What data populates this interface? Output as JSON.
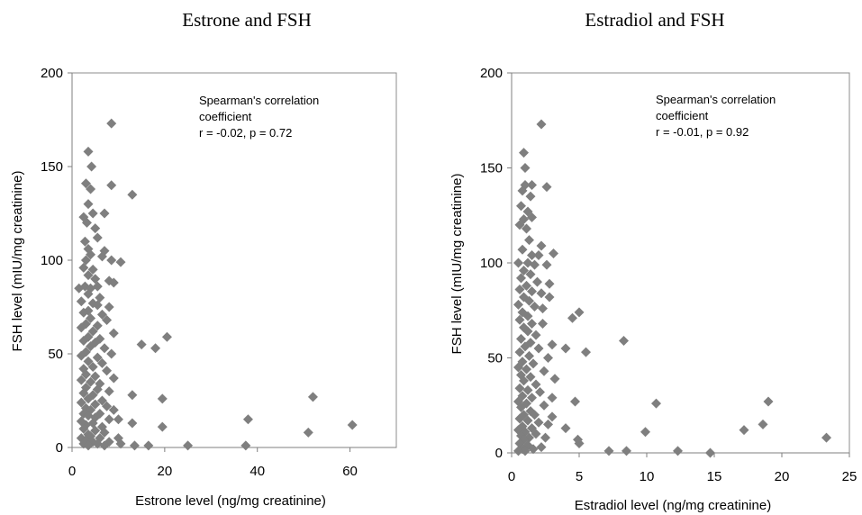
{
  "chart_data": [
    {
      "type": "scatter",
      "title": "Estrone and FSH",
      "xlabel": "Estrone level (ng/mg creatinine)",
      "ylabel": "FSH level (mIU/mg creatinine)",
      "xlim": [
        0,
        70
      ],
      "ylim": [
        0,
        200
      ],
      "xticks": [
        0,
        20,
        40,
        60
      ],
      "yticks": [
        0,
        50,
        100,
        150,
        200
      ],
      "grid": false,
      "marker_color": "#7f7f7f",
      "annotation": [
        "Spearman's correlation",
        "coefficient",
        "r = -0.02, p = 0.72"
      ],
      "points": [
        [
          8.5,
          173
        ],
        [
          3.5,
          158
        ],
        [
          8.5,
          140
        ],
        [
          13,
          135
        ],
        [
          3,
          141
        ],
        [
          4,
          138
        ],
        [
          4.2,
          150
        ],
        [
          3.5,
          130
        ],
        [
          2.5,
          123
        ],
        [
          4.5,
          125
        ],
        [
          7,
          125
        ],
        [
          3.2,
          120
        ],
        [
          5,
          117
        ],
        [
          2.8,
          110
        ],
        [
          5.5,
          112
        ],
        [
          3.5,
          106
        ],
        [
          7,
          105
        ],
        [
          4,
          103
        ],
        [
          3,
          100
        ],
        [
          6.5,
          102
        ],
        [
          8.5,
          100
        ],
        [
          10.5,
          99
        ],
        [
          2.5,
          96
        ],
        [
          4.5,
          95
        ],
        [
          3.5,
          92
        ],
        [
          5,
          90
        ],
        [
          8,
          89
        ],
        [
          9,
          88
        ],
        [
          2.8,
          86
        ],
        [
          4,
          85
        ],
        [
          5.5,
          86
        ],
        [
          1.5,
          85
        ],
        [
          3.5,
          82
        ],
        [
          6,
          80
        ],
        [
          2,
          78
        ],
        [
          4.5,
          77
        ],
        [
          5.5,
          76
        ],
        [
          8,
          75
        ],
        [
          3.5,
          73
        ],
        [
          2.5,
          72
        ],
        [
          6.5,
          71
        ],
        [
          4,
          69
        ],
        [
          7.5,
          68
        ],
        [
          3,
          66
        ],
        [
          5.5,
          65
        ],
        [
          2,
          64
        ],
        [
          4.5,
          62
        ],
        [
          9,
          61
        ],
        [
          3.5,
          59
        ],
        [
          6,
          58
        ],
        [
          2.5,
          57
        ],
        [
          5,
          56
        ],
        [
          15,
          55
        ],
        [
          18,
          53
        ],
        [
          20.5,
          59
        ],
        [
          4,
          54
        ],
        [
          7,
          53
        ],
        [
          3,
          51
        ],
        [
          8.5,
          50
        ],
        [
          2,
          49
        ],
        [
          5.5,
          48
        ],
        [
          3.5,
          46
        ],
        [
          6.5,
          45
        ],
        [
          4.5,
          43
        ],
        [
          2.5,
          42
        ],
        [
          7.5,
          41
        ],
        [
          3,
          39
        ],
        [
          5,
          38
        ],
        [
          9,
          37
        ],
        [
          2,
          36
        ],
        [
          4,
          35
        ],
        [
          6,
          34
        ],
        [
          3,
          32
        ],
        [
          5.5,
          31
        ],
        [
          8,
          30
        ],
        [
          2.5,
          29
        ],
        [
          4.5,
          28
        ],
        [
          13,
          28
        ],
        [
          19.5,
          26
        ],
        [
          3.5,
          26
        ],
        [
          6.5,
          25
        ],
        [
          2,
          24
        ],
        [
          5,
          23
        ],
        [
          7.5,
          22
        ],
        [
          3,
          21
        ],
        [
          4,
          20
        ],
        [
          9,
          20
        ],
        [
          2.5,
          18
        ],
        [
          6,
          18
        ],
        [
          3.5,
          17
        ],
        [
          5,
          16
        ],
        [
          8,
          15
        ],
        [
          10,
          15
        ],
        [
          2,
          14
        ],
        [
          4.5,
          13
        ],
        [
          13,
          13
        ],
        [
          3,
          12
        ],
        [
          6.5,
          11
        ],
        [
          19.5,
          11
        ],
        [
          2.5,
          10
        ],
        [
          5,
          9
        ],
        [
          7,
          8
        ],
        [
          3.5,
          7
        ],
        [
          4,
          6
        ],
        [
          2,
          5
        ],
        [
          6,
          5
        ],
        [
          10,
          5
        ],
        [
          3,
          4
        ],
        [
          4.5,
          3
        ],
        [
          8,
          3
        ],
        [
          2.5,
          2
        ],
        [
          5.5,
          2
        ],
        [
          13.5,
          1
        ],
        [
          16.5,
          1
        ],
        [
          25,
          1
        ],
        [
          37.5,
          1
        ],
        [
          10.5,
          2
        ],
        [
          3.5,
          1
        ],
        [
          7,
          1
        ],
        [
          52,
          27
        ],
        [
          38,
          15
        ],
        [
          60.5,
          12
        ],
        [
          51,
          8
        ]
      ]
    },
    {
      "type": "scatter",
      "title": "Estradiol and FSH",
      "xlabel": "Estradiol level (ng/mg creatinine)",
      "ylabel": "FSH level (mIU/mg creatinine)",
      "xlim": [
        0,
        25
      ],
      "ylim": [
        0,
        200
      ],
      "xticks": [
        0,
        5,
        10,
        15,
        20,
        25
      ],
      "yticks": [
        0,
        50,
        100,
        150,
        200
      ],
      "grid": false,
      "marker_color": "#7f7f7f",
      "annotation": [
        "Spearman's correlation",
        "coefficient",
        "r = -0.01, p = 0.92"
      ],
      "points": [
        [
          2.2,
          173
        ],
        [
          0.9,
          158
        ],
        [
          1,
          150
        ],
        [
          1.5,
          141
        ],
        [
          2.6,
          140
        ],
        [
          1,
          141
        ],
        [
          0.8,
          138
        ],
        [
          1.4,
          135
        ],
        [
          0.7,
          130
        ],
        [
          1.2,
          127
        ],
        [
          0.9,
          123
        ],
        [
          1.5,
          124
        ],
        [
          0.6,
          120
        ],
        [
          1.1,
          118
        ],
        [
          2.2,
          109
        ],
        [
          1.3,
          112
        ],
        [
          0.8,
          107
        ],
        [
          1.5,
          104
        ],
        [
          2,
          104
        ],
        [
          3.1,
          105
        ],
        [
          0.5,
          100
        ],
        [
          1.2,
          100
        ],
        [
          1.7,
          99
        ],
        [
          2.6,
          99
        ],
        [
          0.9,
          96
        ],
        [
          1.4,
          94
        ],
        [
          0.7,
          92
        ],
        [
          1.9,
          90
        ],
        [
          2.8,
          89
        ],
        [
          1.1,
          88
        ],
        [
          0.6,
          86
        ],
        [
          1.5,
          85
        ],
        [
          2.2,
          84
        ],
        [
          0.9,
          82
        ],
        [
          1.3,
          80
        ],
        [
          2.8,
          82
        ],
        [
          0.5,
          78
        ],
        [
          1.7,
          77
        ],
        [
          2.3,
          76
        ],
        [
          0.8,
          74
        ],
        [
          5,
          74
        ],
        [
          1.2,
          72
        ],
        [
          4.5,
          71
        ],
        [
          0.6,
          70
        ],
        [
          1.5,
          68
        ],
        [
          2.3,
          68
        ],
        [
          0.9,
          66
        ],
        [
          1.2,
          64
        ],
        [
          1.8,
          62
        ],
        [
          0.7,
          60
        ],
        [
          1.4,
          58
        ],
        [
          8.3,
          59
        ],
        [
          1,
          56
        ],
        [
          2,
          55
        ],
        [
          3,
          57
        ],
        [
          4,
          55
        ],
        [
          5.5,
          53
        ],
        [
          0.6,
          53
        ],
        [
          1.3,
          51
        ],
        [
          2.7,
          50
        ],
        [
          0.8,
          48
        ],
        [
          1.6,
          47
        ],
        [
          0.5,
          45
        ],
        [
          1.1,
          44
        ],
        [
          2.4,
          43
        ],
        [
          0.7,
          41
        ],
        [
          1.4,
          40
        ],
        [
          3.2,
          39
        ],
        [
          0.9,
          38
        ],
        [
          1.8,
          36
        ],
        [
          0.6,
          34
        ],
        [
          1.2,
          33
        ],
        [
          2.1,
          32
        ],
        [
          0.8,
          30
        ],
        [
          1.5,
          29
        ],
        [
          3,
          29
        ],
        [
          4.7,
          27
        ],
        [
          0.5,
          27
        ],
        [
          1.1,
          26
        ],
        [
          2.4,
          25
        ],
        [
          0.7,
          24
        ],
        [
          1.4,
          22
        ],
        [
          0.9,
          20
        ],
        [
          1.7,
          20
        ],
        [
          3,
          19
        ],
        [
          0.6,
          18
        ],
        [
          1.2,
          17
        ],
        [
          2,
          16
        ],
        [
          2.7,
          15
        ],
        [
          0.8,
          14
        ],
        [
          1.5,
          13
        ],
        [
          4,
          13
        ],
        [
          0.5,
          12
        ],
        [
          1,
          11
        ],
        [
          1.8,
          10
        ],
        [
          0.7,
          9
        ],
        [
          1.3,
          8
        ],
        [
          2.5,
          8
        ],
        [
          0.9,
          7
        ],
        [
          4.9,
          7
        ],
        [
          5,
          5
        ],
        [
          0.6,
          5
        ],
        [
          1.2,
          4
        ],
        [
          2.2,
          3
        ],
        [
          0.8,
          2
        ],
        [
          1.6,
          2
        ],
        [
          1,
          1
        ],
        [
          0.5,
          1
        ],
        [
          7.2,
          1
        ],
        [
          8.5,
          1
        ],
        [
          12.3,
          1
        ],
        [
          14.7,
          0
        ],
        [
          10.7,
          26
        ],
        [
          19,
          27
        ],
        [
          18.6,
          15
        ],
        [
          17.2,
          12
        ],
        [
          9.9,
          11
        ],
        [
          23.3,
          8
        ]
      ]
    }
  ]
}
